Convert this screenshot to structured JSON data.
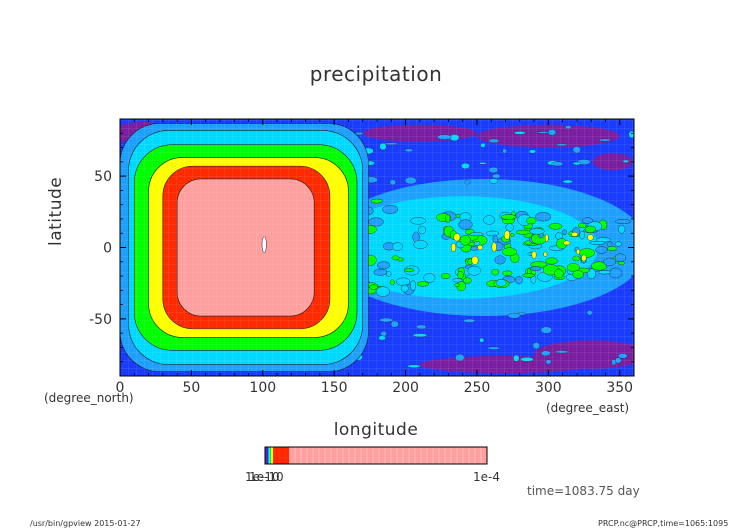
{
  "chart_data": {
    "type": "heatmap",
    "title": "precipitation",
    "xlabel": "longitude",
    "xunit": "(degree_east)",
    "ylabel": "latitude",
    "yunit": "(degree_north)",
    "xlim": [
      0,
      360
    ],
    "ylim": [
      -90,
      90
    ],
    "xticks": [
      0,
      50,
      100,
      150,
      200,
      250,
      300,
      350
    ],
    "yticks": [
      -50,
      0,
      50
    ],
    "colorbar": {
      "labels_left": "1e-10",
      "label_right": "1e-4",
      "colors": [
        "#7b1fa2",
        "#0a32ff",
        "#1ea0ff",
        "#00ffff",
        "#00ff00",
        "#ffff00",
        "#ff2a00",
        "#ffa0a0"
      ]
    },
    "contour_levels": [
      {
        "level": "1e-8",
        "color": "#0a32ff"
      },
      {
        "level": "5e-8",
        "color": "#1ea0ff"
      },
      {
        "level": "1e-7",
        "color": "#00d9ff"
      },
      {
        "level": "5e-7",
        "color": "#00ff00"
      },
      {
        "level": "1e-6",
        "color": "#ffff00"
      },
      {
        "level": "5e-6",
        "color": "#ff2a00"
      },
      {
        "level": "1e-5",
        "color": "#ffa0a0"
      }
    ],
    "grid": true
  },
  "annotations": {
    "time": "time=1083.75 day",
    "footer_left": "/usr/bin/gpview  2015-01-27",
    "footer_right": "PRCP.nc@PRCP,time=1065:1095"
  }
}
